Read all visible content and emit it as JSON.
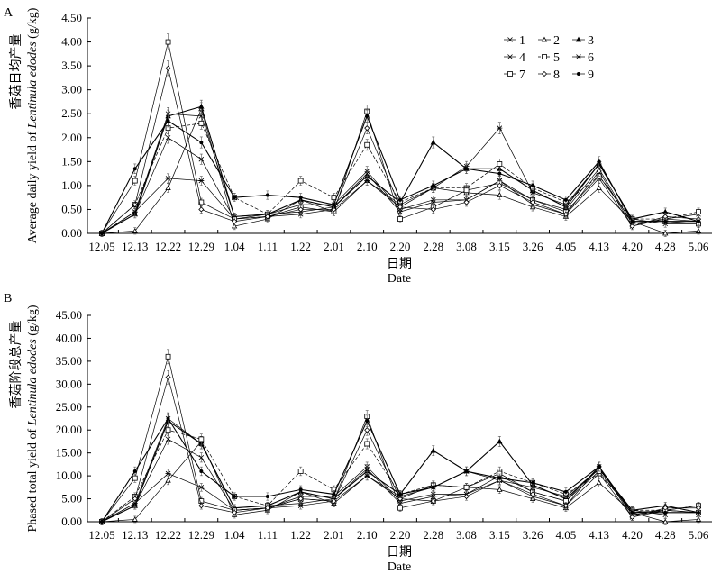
{
  "chart_data": [
    {
      "type": "line",
      "panel": "A",
      "ylabel_cn": "香菇日均产量",
      "ylabel_en": "Average daily yield of ",
      "ylabel_species": "Lentinula edodes",
      "ylabel_unit": " (g/kg)",
      "xlabel_cn": "日期",
      "xlabel_en": "Date",
      "ylim": [
        0,
        4.5
      ],
      "yticks": [
        "0.00",
        "0.50",
        "1.00",
        "1.50",
        "2.00",
        "2.50",
        "3.00",
        "3.50",
        "4.00",
        "4.50"
      ],
      "categories": [
        "12.05",
        "12.13",
        "12.22",
        "12.29",
        "1.04",
        "1.11",
        "1.22",
        "2.01",
        "2.10",
        "2.20",
        "2.28",
        "3.08",
        "3.15",
        "3.26",
        "4.05",
        "4.13",
        "4.20",
        "4.28",
        "5.06"
      ],
      "series": [
        {
          "name": "1",
          "values": [
            0,
            0.4,
            2.0,
            1.55,
            0.3,
            0.4,
            0.6,
            0.6,
            1.3,
            0.5,
            0.7,
            0.7,
            1.1,
            0.7,
            0.5,
            1.35,
            0.2,
            0.3,
            0.25
          ]
        },
        {
          "name": "2",
          "values": [
            0,
            0.05,
            0.95,
            2.6,
            0.15,
            0.3,
            0.7,
            0.45,
            1.1,
            0.55,
            0.95,
            0.85,
            0.8,
            0.55,
            0.35,
            0.95,
            0.25,
            0.0,
            0.05
          ]
        },
        {
          "name": "3",
          "values": [
            0,
            0.4,
            2.45,
            2.65,
            0.35,
            0.4,
            0.7,
            0.55,
            1.2,
            0.65,
            1.9,
            1.35,
            1.35,
            0.9,
            0.55,
            1.45,
            0.3,
            0.45,
            0.25
          ]
        },
        {
          "name": "4",
          "values": [
            0,
            0.45,
            2.5,
            2.45,
            0.35,
            0.4,
            0.45,
            0.55,
            1.25,
            0.45,
            0.65,
            0.7,
            1.1,
            0.6,
            0.4,
            1.15,
            0.15,
            0.3,
            0.4
          ]
        },
        {
          "name": "5",
          "values": [
            0,
            0.6,
            2.2,
            2.3,
            0.75,
            0.4,
            1.1,
            0.75,
            1.85,
            0.65,
            0.95,
            0.95,
            1.45,
            0.95,
            0.65,
            1.2,
            0.3,
            0.3,
            0.45
          ]
        },
        {
          "name": "6",
          "values": [
            0,
            0.45,
            1.15,
            1.1,
            0.3,
            0.35,
            0.4,
            0.5,
            1.1,
            0.6,
            0.95,
            1.4,
            2.2,
            0.85,
            0.6,
            1.45,
            0.3,
            0.2,
            0.2
          ]
        },
        {
          "name": "7",
          "values": [
            0,
            1.1,
            4.0,
            0.65,
            0.3,
            0.35,
            0.55,
            0.45,
            2.55,
            0.3,
            0.55,
            0.9,
            1.05,
            0.7,
            0.45,
            1.2,
            0.25,
            0.25,
            0.2
          ]
        },
        {
          "name": "8",
          "values": [
            0,
            0.6,
            3.45,
            0.5,
            0.25,
            0.35,
            0.5,
            0.5,
            2.2,
            0.55,
            0.5,
            0.65,
            1.0,
            0.65,
            0.4,
            1.3,
            0.15,
            0.35,
            0.3
          ]
        },
        {
          "name": "9",
          "values": [
            0,
            1.35,
            2.35,
            1.9,
            0.75,
            0.8,
            0.75,
            0.6,
            2.45,
            0.7,
            1.0,
            1.35,
            1.25,
            1.0,
            0.7,
            1.5,
            0.25,
            0.25,
            0.25
          ]
        }
      ]
    },
    {
      "type": "line",
      "panel": "B",
      "ylabel_cn": "香菇阶段总产量",
      "ylabel_en": "Phased total yield of ",
      "ylabel_species": "Lentinula edodes",
      "ylabel_unit": " (g/kg)",
      "xlabel_cn": "日期",
      "xlabel_en": "Date",
      "ylim": [
        0,
        45
      ],
      "yticks": [
        "0.00",
        "5.00",
        "10.00",
        "15.00",
        "20.00",
        "25.00",
        "30.00",
        "35.00",
        "40.00",
        "45.00"
      ],
      "categories": [
        "12.05",
        "12.13",
        "12.22",
        "12.29",
        "1.04",
        "1.11",
        "1.22",
        "2.01",
        "2.10",
        "2.20",
        "2.28",
        "3.08",
        "3.15",
        "3.26",
        "4.05",
        "4.13",
        "4.20",
        "4.28",
        "5.06"
      ],
      "series": [
        {
          "name": "1",
          "values": [
            0,
            3.5,
            18,
            14,
            2.5,
            3,
            5.5,
            5.5,
            12,
            4.5,
            6,
            6,
            10,
            6.5,
            4.5,
            12,
            1.5,
            2.5,
            2
          ]
        },
        {
          "name": "2",
          "values": [
            0,
            0.5,
            9,
            17.5,
            1.5,
            2.5,
            6.5,
            4,
            10,
            5,
            8,
            7.5,
            7,
            5,
            3,
            8.5,
            2,
            0,
            0.5
          ]
        },
        {
          "name": "3",
          "values": [
            0,
            3.5,
            22,
            17,
            3,
            3.5,
            6.5,
            5,
            11,
            6,
            15.5,
            11,
            17.5,
            8,
            5,
            11.5,
            2.5,
            3.5,
            2
          ]
        },
        {
          "name": "4",
          "values": [
            0,
            4,
            22.5,
            17,
            3,
            3.5,
            4,
            5,
            11.5,
            4,
            5.5,
            6,
            9,
            5.5,
            3.5,
            10.5,
            1,
            2.5,
            3.5
          ]
        },
        {
          "name": "5",
          "values": [
            0,
            5.5,
            20,
            18,
            5.5,
            3.5,
            11,
            7,
            17,
            6,
            8,
            7.5,
            11,
            8.5,
            6,
            10.5,
            2.5,
            2.5,
            3.5
          ]
        },
        {
          "name": "6",
          "values": [
            0,
            4,
            10.5,
            7.5,
            2.5,
            3,
            3.5,
            4.5,
            10,
            5.5,
            7.5,
            11,
            9,
            7.5,
            5.5,
            11.5,
            2.5,
            1.5,
            1.5
          ]
        },
        {
          "name": "7",
          "values": [
            0,
            9.5,
            36,
            4.5,
            2.5,
            3,
            5,
            4.5,
            23,
            3,
            4.5,
            7.5,
            10.5,
            6.5,
            4.5,
            11,
            2,
            2.5,
            2
          ]
        },
        {
          "name": "8",
          "values": [
            0,
            5,
            31.5,
            3.5,
            2,
            3,
            5,
            4.5,
            20,
            5,
            4.5,
            5.5,
            9,
            6,
            3.5,
            12,
            1,
            3,
            3
          ]
        },
        {
          "name": "9",
          "values": [
            0,
            11,
            22.5,
            11,
            5.5,
            5.5,
            7,
            6,
            22,
            6,
            7.5,
            11,
            9.5,
            8.5,
            6.5,
            12,
            2,
            2,
            2
          ]
        }
      ]
    }
  ],
  "panel_labels": [
    "A",
    "B"
  ],
  "legend": [
    "1",
    "2",
    "3",
    "4",
    "5",
    "6",
    "7",
    "8",
    "9"
  ]
}
